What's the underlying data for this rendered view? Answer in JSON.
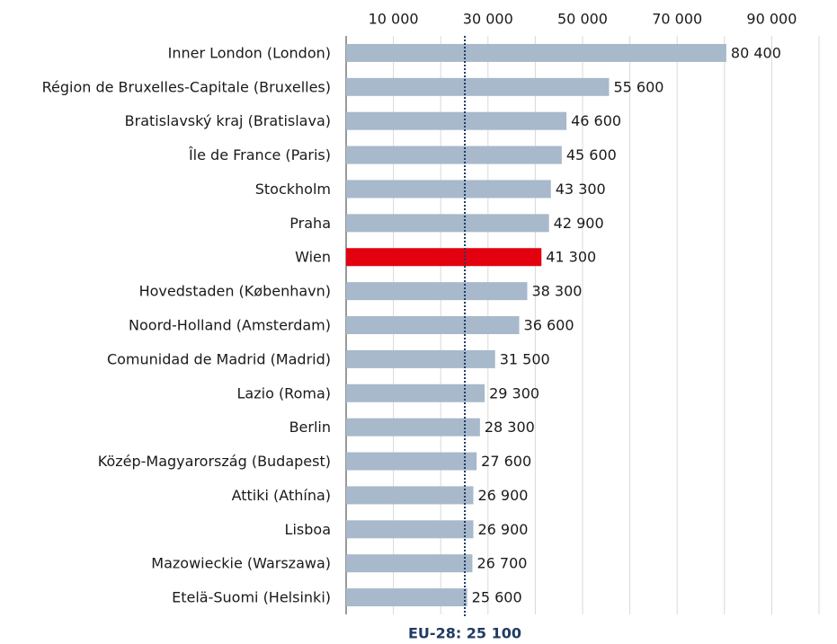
{
  "chart_data": {
    "type": "barh",
    "categories": [
      "Inner London (London)",
      "Région de Bruxelles-Capitale (Bruxelles)",
      "Bratislavský kraj (Bratislava)",
      "Île de France (Paris)",
      "Stockholm",
      "Praha",
      "Wien",
      "Hovedstaden (København)",
      "Noord-Holland (Amsterdam)",
      "Comunidad de Madrid (Madrid)",
      "Lazio (Roma)",
      "Berlin",
      "Közép-Magyarország (Budapest)",
      "Attiki (Athína)",
      "Lisboa",
      "Mazowieckie (Warszawa)",
      "Etelä-Suomi (Helsinki)"
    ],
    "values": [
      80400,
      55600,
      46600,
      45600,
      43300,
      42900,
      41300,
      38300,
      36600,
      31500,
      29300,
      28300,
      27600,
      26900,
      26900,
      26700,
      25600
    ],
    "value_labels": [
      "80 400",
      "55 600",
      "46 600",
      "45 600",
      "43 300",
      "42 900",
      "41 300",
      "38 300",
      "36 600",
      "31 500",
      "29 300",
      "28 300",
      "27 600",
      "26 900",
      "26 900",
      "26 700",
      "25 600"
    ],
    "colors": [
      "#a7b9ca",
      "#a7b9ca",
      "#a7b9ca",
      "#a7b9ca",
      "#a7b9ca",
      "#a7b9ca",
      "#e3000f",
      "#a7b9ca",
      "#a7b9ca",
      "#a7b9ca",
      "#a7b9ca",
      "#a7b9ca",
      "#a7b9ca",
      "#a7b9ca",
      "#a7b9ca",
      "#a7b9ca",
      "#a7b9ca"
    ],
    "xlim": [
      0,
      100000
    ],
    "xticks": [
      {
        "value": 10000,
        "label": "10 000"
      },
      {
        "value": 30000,
        "label": "30 000"
      },
      {
        "value": 50000,
        "label": "50 000"
      },
      {
        "value": 70000,
        "label": "70 000"
      },
      {
        "value": 90000,
        "label": "90 000"
      }
    ],
    "grid": true,
    "reference_line": {
      "value": 25100,
      "label": "EU-28: 25 100",
      "color": "#1f3b63"
    }
  }
}
